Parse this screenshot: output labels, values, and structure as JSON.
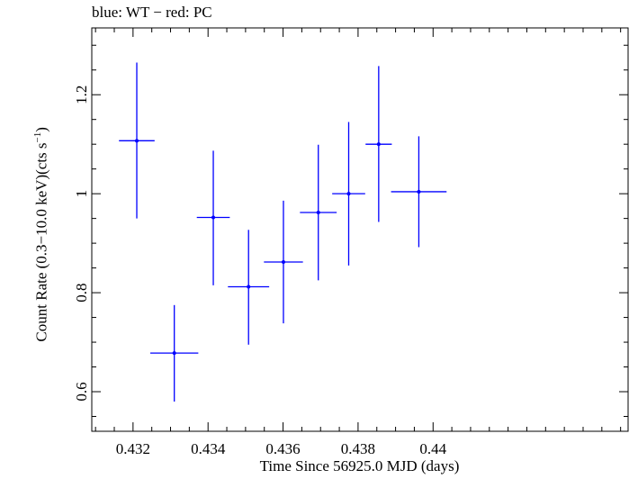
{
  "chart_data": {
    "type": "scatter",
    "title": "blue: WT − red: PC",
    "xlabel": "Time Since 56925.0 MJD (days)",
    "ylabel_main": "Count Rate (0.3−10.0 keV)(cts s",
    "ylabel_sup": "−1",
    "ylabel_end": ")",
    "xlim": [
      0.4309,
      0.4452
    ],
    "ylim": [
      0.52,
      1.335
    ],
    "xticks": [
      {
        "value": 0.432,
        "label": "0.432"
      },
      {
        "value": 0.434,
        "label": "0.434"
      },
      {
        "value": 0.436,
        "label": "0.436"
      },
      {
        "value": 0.438,
        "label": "0.438"
      },
      {
        "value": 0.44,
        "label": "0.44"
      }
    ],
    "yticks": [
      {
        "value": 0.6,
        "label": "0.6"
      },
      {
        "value": 0.8,
        "label": "0.8"
      },
      {
        "value": 1.0,
        "label": "1"
      },
      {
        "value": 1.2,
        "label": "1.2"
      }
    ],
    "grid": false,
    "series": [
      {
        "color": "#0000ff",
        "points": [
          {
            "x": 0.4321,
            "xerr": [
              0.000475,
              0.000475
            ],
            "y": 1.107,
            "yerr": [
              0.157,
              0.158
            ]
          },
          {
            "x": 0.4331,
            "xerr": [
              0.00064,
              0.00064
            ],
            "y": 0.678,
            "yerr": [
              0.098,
              0.097
            ]
          },
          {
            "x": 0.43414,
            "xerr": [
              0.00044,
              0.00044
            ],
            "y": 0.952,
            "yerr": [
              0.137,
              0.135
            ]
          },
          {
            "x": 0.43508,
            "xerr": [
              0.00055,
              0.00055
            ],
            "y": 0.812,
            "yerr": [
              0.117,
              0.115
            ]
          },
          {
            "x": 0.43601,
            "xerr": [
              0.00052,
              0.00052
            ],
            "y": 0.862,
            "yerr": [
              0.124,
              0.124
            ]
          },
          {
            "x": 0.43694,
            "xerr": [
              0.00049,
              0.00049
            ],
            "y": 0.962,
            "yerr": [
              0.137,
              0.137
            ]
          },
          {
            "x": 0.43775,
            "xerr": [
              0.00044,
              0.00044
            ],
            "y": 1.0,
            "yerr": [
              0.145,
              0.145
            ]
          },
          {
            "x": 0.43855,
            "xerr": [
              0.00035,
              0.00035
            ],
            "y": 1.1,
            "yerr": [
              0.157,
              0.158
            ]
          },
          {
            "x": 0.43962,
            "xerr": [
              0.00074,
              0.00074
            ],
            "y": 1.004,
            "yerr": [
              0.112,
              0.112
            ]
          }
        ]
      }
    ]
  }
}
